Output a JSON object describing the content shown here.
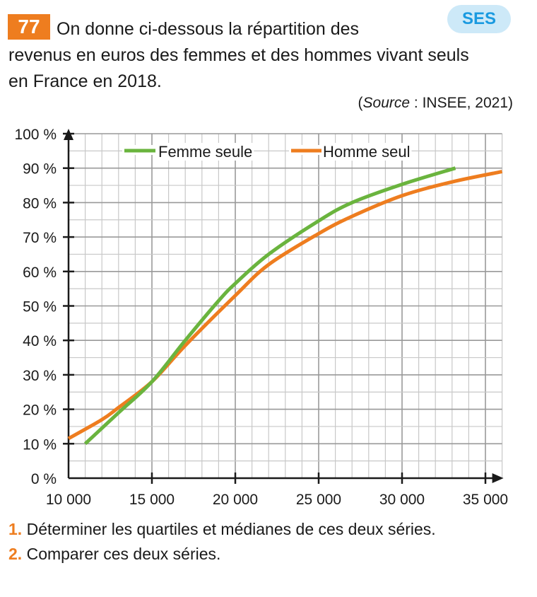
{
  "exercise": {
    "number": "77",
    "tag": "SES",
    "statement_lines": [
      "On donne ci-dessous la répartition des",
      "revenus en euros des femmes et des hommes vivant seuls",
      "en France en 2018."
    ],
    "source_prefix": "(",
    "source_label": "Source",
    "source_rest": " : INSEE, 2021)"
  },
  "questions": [
    {
      "num": "1.",
      "text": " Déterminer les quartiles et médianes de ces deux séries."
    },
    {
      "num": "2.",
      "text": " Comparer ces deux séries."
    }
  ],
  "chart_data": {
    "type": "line",
    "title": "",
    "xlabel": "",
    "ylabel": "",
    "xlim": [
      10000,
      36000
    ],
    "ylim": [
      0,
      100
    ],
    "grid": true,
    "legend": "top",
    "x_ticks": [
      10000,
      15000,
      20000,
      25000,
      30000,
      35000
    ],
    "x_tick_labels": [
      "10 000",
      "15 000",
      "20 000",
      "25 000",
      "30 000",
      "35 000"
    ],
    "y_ticks": [
      0,
      10,
      20,
      30,
      40,
      50,
      60,
      70,
      80,
      90,
      100
    ],
    "y_tick_labels": [
      "0 %",
      "10 %",
      "20 %",
      "30 %",
      "40 %",
      "50 %",
      "60 %",
      "70 %",
      "80 %",
      "90 %",
      "100 %"
    ],
    "series": [
      {
        "name": "Femme seule",
        "color": "#6ab43e",
        "points": [
          [
            11000,
            10
          ],
          [
            13000,
            19
          ],
          [
            15000,
            28
          ],
          [
            17000,
            40
          ],
          [
            19000,
            51.5
          ],
          [
            20000,
            56.5
          ],
          [
            22000,
            65
          ],
          [
            25000,
            74.7
          ],
          [
            27000,
            80
          ],
          [
            30000,
            85.3
          ],
          [
            33200,
            90
          ]
        ]
      },
      {
        "name": "Homme seul",
        "color": "#ee7d1f",
        "points": [
          [
            10000,
            11.5
          ],
          [
            12000,
            17
          ],
          [
            13000,
            20.5
          ],
          [
            15000,
            28
          ],
          [
            17000,
            38.5
          ],
          [
            20000,
            53
          ],
          [
            22000,
            62
          ],
          [
            25000,
            71
          ],
          [
            27000,
            76
          ],
          [
            30000,
            82
          ],
          [
            33000,
            86
          ],
          [
            36000,
            89
          ]
        ]
      }
    ]
  }
}
